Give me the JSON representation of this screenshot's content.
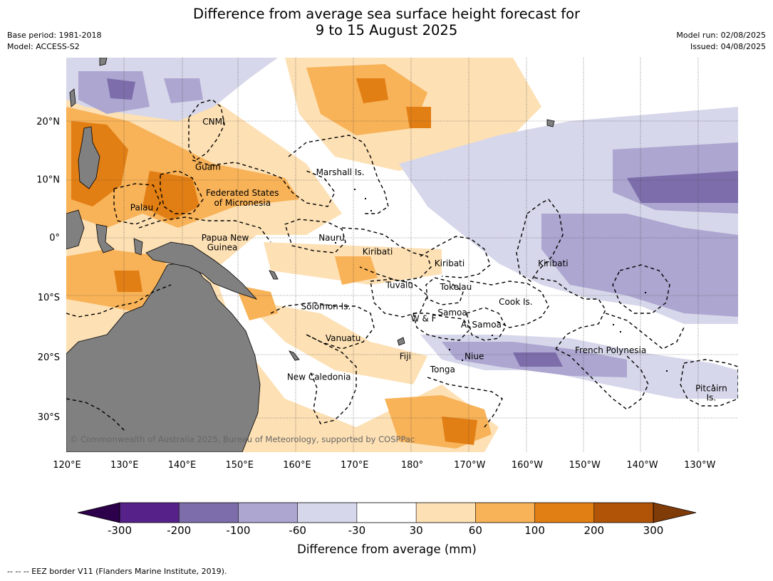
{
  "title": {
    "line1": "Difference from average sea surface height forecast for",
    "line2": "9 to 15 August 2025"
  },
  "meta_left": {
    "base_period": "Base period: 1981-2018",
    "model": "Model: ACCESS-S2"
  },
  "meta_right": {
    "model_run": "Model run: 02/08/2025",
    "issued": "Issued: 04/08/2025"
  },
  "map": {
    "lon_range": [
      120,
      235
    ],
    "lat_range": [
      -36,
      31
    ],
    "lon_ticks": [
      {
        "value": 120,
        "label": "120°E"
      },
      {
        "value": 130,
        "label": "130°E"
      },
      {
        "value": 140,
        "label": "140°E"
      },
      {
        "value": 150,
        "label": "150°E"
      },
      {
        "value": 160,
        "label": "160°E"
      },
      {
        "value": 170,
        "label": "170°E"
      },
      {
        "value": 180,
        "label": "180°"
      },
      {
        "value": 190,
        "label": "170°W"
      },
      {
        "value": 200,
        "label": "160°W"
      },
      {
        "value": 210,
        "label": "150°W"
      },
      {
        "value": 220,
        "label": "140°W"
      },
      {
        "value": 230,
        "label": "130°W"
      }
    ],
    "lat_ticks": [
      {
        "value": 20,
        "label": "20°N"
      },
      {
        "value": 10,
        "label": "10°N"
      },
      {
        "value": 0,
        "label": "0°"
      },
      {
        "value": -10,
        "label": "10°S"
      },
      {
        "value": -20,
        "label": "20°S"
      },
      {
        "value": -30,
        "label": "30°S"
      }
    ],
    "place_labels": [
      {
        "text": "CNMI",
        "lon": 145.5,
        "lat": 20.0
      },
      {
        "text": "Guam",
        "lon": 144.5,
        "lat": 12.2
      },
      {
        "text": "Marshall Is.",
        "lon": 167.5,
        "lat": 11.3
      },
      {
        "text": "Federated States",
        "lon": 150.5,
        "lat": 7.7
      },
      {
        "text": "of Micronesia",
        "lon": 150.5,
        "lat": 6.0
      },
      {
        "text": "Palau",
        "lon": 133.0,
        "lat": 5.2
      },
      {
        "text": "Papua New",
        "lon": 147.5,
        "lat": 0.0
      },
      {
        "text": "Guinea",
        "lon": 147.0,
        "lat": -1.6
      },
      {
        "text": "Nauru",
        "lon": 166.0,
        "lat": 0.0
      },
      {
        "text": "Kiribati",
        "lon": 174.0,
        "lat": -2.3
      },
      {
        "text": "Kiribati",
        "lon": 186.5,
        "lat": -4.3
      },
      {
        "text": "Kiribati",
        "lon": 204.5,
        "lat": -4.3
      },
      {
        "text": "Tuvalu",
        "lon": 177.8,
        "lat": -7.9
      },
      {
        "text": "Tokelau",
        "lon": 187.6,
        "lat": -8.2
      },
      {
        "text": "Cook Is.",
        "lon": 198.0,
        "lat": -10.7
      },
      {
        "text": "Solomon Is.",
        "lon": 165.0,
        "lat": -11.5
      },
      {
        "text": "Samoa",
        "lon": 187.0,
        "lat": -12.5
      },
      {
        "text": "W & F",
        "lon": 182.0,
        "lat": -13.5
      },
      {
        "text": "A. Samoa",
        "lon": 192.0,
        "lat": -14.5
      },
      {
        "text": "Vanuatu",
        "lon": 168.0,
        "lat": -16.8
      },
      {
        "text": "Fiji",
        "lon": 178.8,
        "lat": -19.8
      },
      {
        "text": "Niue",
        "lon": 190.8,
        "lat": -19.8
      },
      {
        "text": "French Polynesia",
        "lon": 214.5,
        "lat": -18.8
      },
      {
        "text": "Tonga",
        "lon": 185.3,
        "lat": -22.0
      },
      {
        "text": "New Caledonia",
        "lon": 163.8,
        "lat": -23.3
      },
      {
        "text": "Pitcairn",
        "lon": 232.0,
        "lat": -25.2
      },
      {
        "text": "Is.",
        "lon": 232.0,
        "lat": -26.7
      }
    ],
    "copyright": "© Commonwealth of Australia 2025, Bureau of Meteorology, supported by COSPPac"
  },
  "colorbar": {
    "boundaries": [
      -300,
      -200,
      -100,
      -60,
      -30,
      30,
      60,
      100,
      200,
      300
    ],
    "tick_labels": [
      "-300",
      "-200",
      "-100",
      "-60",
      "-30",
      "30",
      "60",
      "100",
      "200",
      "300"
    ],
    "colors": [
      "#56228a",
      "#7d6dab",
      "#aca6d0",
      "#d6d7ea",
      "#ffffff",
      "#fde0b4",
      "#f8b257",
      "#e17e14",
      "#b15407"
    ],
    "under_color": "#2d004b",
    "over_color": "#7f3b08",
    "label": "Difference from average (mm)"
  },
  "footer": "--  --  -- EEZ border V11 (Flanders Marine Institute, 2019)."
}
